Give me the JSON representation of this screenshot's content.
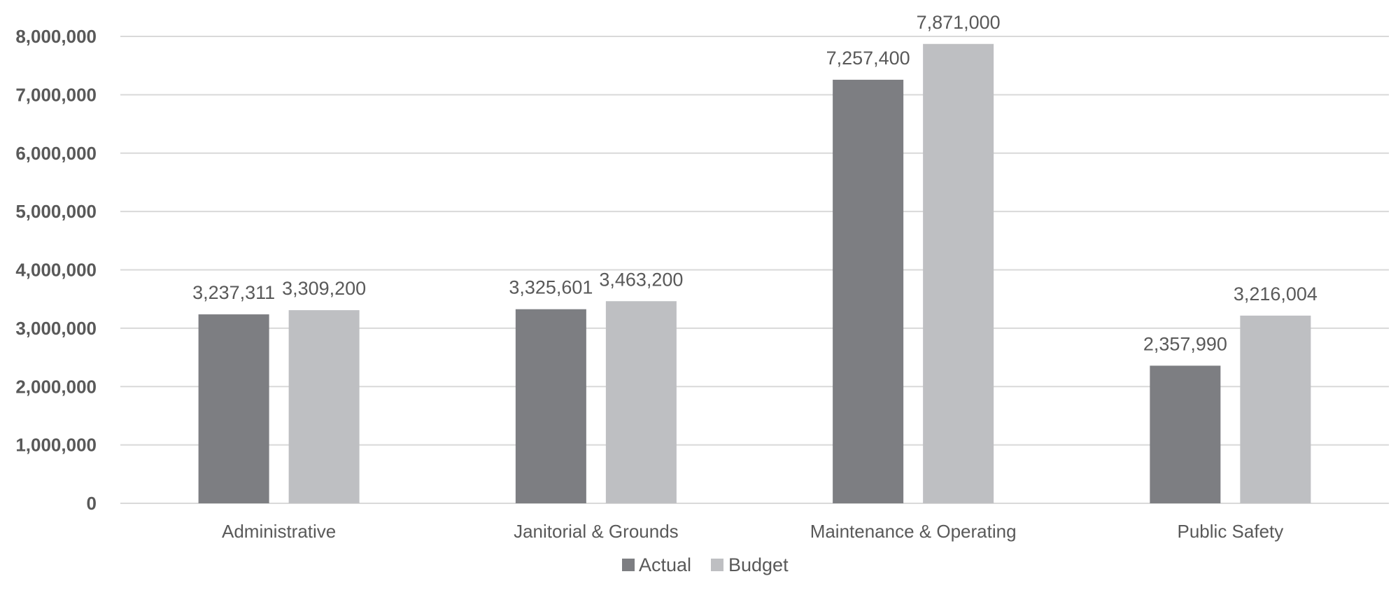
{
  "chart_data": {
    "type": "bar",
    "title": "",
    "xlabel": "",
    "ylabel": "",
    "categories": [
      "Administrative",
      "Janitorial & Grounds",
      "Maintenance & Operating",
      "Public Safety"
    ],
    "series": [
      {
        "name": "Actual",
        "color": "#7d7e82",
        "values": [
          3237311,
          3325601,
          7257400,
          2357990
        ],
        "labels": [
          "3,237,311",
          "3,325,601",
          "7,257,400",
          "2,357,990"
        ]
      },
      {
        "name": "Budget",
        "color": "#bebfc2",
        "values": [
          3309200,
          3463200,
          7871000,
          3216004
        ],
        "labels": [
          "3,309,200",
          "3,463,200",
          "7,871,000",
          "3,216,004"
        ]
      }
    ],
    "ylim": [
      0,
      8000000
    ],
    "yticks": [
      0,
      1000000,
      2000000,
      3000000,
      4000000,
      5000000,
      6000000,
      7000000,
      8000000
    ],
    "ytick_labels": [
      "0",
      "1,000,000",
      "2,000,000",
      "3,000,000",
      "4,000,000",
      "5,000,000",
      "6,000,000",
      "7,000,000",
      "8,000,000"
    ],
    "grid": true,
    "legend": "bottom",
    "text_color": "#595959",
    "grid_color": "#d9d9d9"
  }
}
